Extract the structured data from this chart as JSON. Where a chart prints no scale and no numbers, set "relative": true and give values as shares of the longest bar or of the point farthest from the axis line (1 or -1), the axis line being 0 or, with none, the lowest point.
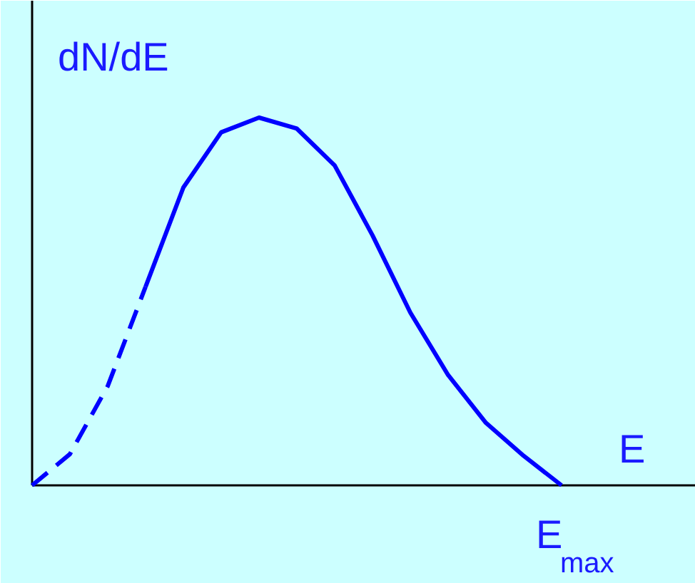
{
  "chart_data": {
    "type": "line",
    "relative": true,
    "ylabel": "dN/dE",
    "xlabel": "E",
    "annotations": [
      "E$_{max}$"
    ],
    "categories": [
      null,
      null,
      null,
      null,
      null,
      null,
      null,
      null,
      null,
      null,
      null,
      null,
      null,
      null,
      null
    ],
    "series": [
      {
        "color": "#0000ff",
        "line_style": "dashed",
        "values": [
          0,
          0.085,
          0.27,
          0.54,
          null,
          null,
          null,
          null,
          null,
          null,
          null,
          null,
          null,
          null,
          null
        ]
      },
      {
        "color": "#0000ff",
        "line_style": "solid",
        "values": [
          null,
          null,
          null,
          0.54,
          0.81,
          0.96,
          1.0,
          0.97,
          0.87,
          0.68,
          0.47,
          0.3,
          0.17,
          0.08,
          0
        ]
      }
    ],
    "grid": false,
    "marker": "none"
  }
}
